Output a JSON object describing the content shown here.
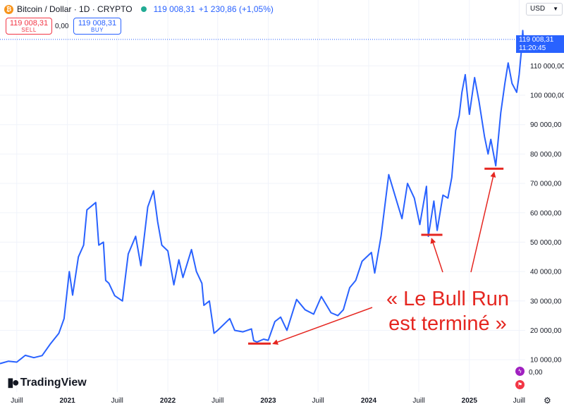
{
  "header": {
    "symbol": "Bitcoin / Dollar · 1D · CRYPTO",
    "last_price": "119 008,31",
    "change": "+1 230,86 (+1,05%)"
  },
  "trade": {
    "sell_price": "119 008,31",
    "sell_label": "SELL",
    "spread": "0,00",
    "buy_price": "119 008,31",
    "buy_label": "BUY"
  },
  "currency": "USD",
  "price_tag": {
    "value": "119 008,31",
    "countdown": "11:20:45"
  },
  "logo": "TradingView",
  "axis_zero": "0,00",
  "annotation": {
    "line1": "« Le Bull Run",
    "line2": "est terminé »"
  },
  "colors": {
    "line": "#2962ff",
    "annotation": "#e52620",
    "sell": "#f23645",
    "buy": "#2962ff"
  },
  "icons": [
    "bitcoin-icon",
    "eye-icon",
    "flash-icon",
    "flag-icon",
    "settings-icon",
    "tradingview-logo-icon"
  ],
  "chart_data": {
    "type": "line",
    "title": "Bitcoin / Dollar · 1D · CRYPTO",
    "xlabel": "",
    "ylabel": "",
    "y_ticks": [
      10000,
      20000,
      30000,
      40000,
      50000,
      60000,
      70000,
      80000,
      90000,
      100000,
      110000
    ],
    "y_tick_labels": [
      "10 000,00",
      "20 000,00",
      "30 000,00",
      "40 000,00",
      "50 000,00",
      "60 000,00",
      "70 000,00",
      "80 000,00",
      "90 000,00",
      "100 000,00",
      "110 000,00"
    ],
    "ylim": [
      -1000,
      130000
    ],
    "x_ticks": [
      "2020-07-01",
      "2021-01-01",
      "2021-07-01",
      "2022-01-01",
      "2022-07-01",
      "2023-01-01",
      "2023-07-01",
      "2024-01-01",
      "2024-07-01",
      "2025-01-01",
      "2025-07-01"
    ],
    "x_tick_labels": [
      "Juill",
      "2021",
      "Juill",
      "2022",
      "Juill",
      "2023",
      "Juill",
      "2024",
      "Juill",
      "2025",
      "Juill"
    ],
    "xlim": [
      "2020-05-01",
      "2025-07-23"
    ],
    "series": [
      {
        "x": [
          "2020-05-01",
          "2020-06-01",
          "2020-07-01",
          "2020-08-01",
          "2020-09-01",
          "2020-10-01",
          "2020-11-01",
          "2020-12-01",
          "2020-12-20",
          "2021-01-08",
          "2021-01-20",
          "2021-02-10",
          "2021-03-01",
          "2021-03-13",
          "2021-04-14",
          "2021-04-25",
          "2021-05-12",
          "2021-05-20",
          "2021-06-01",
          "2021-06-22",
          "2021-07-20",
          "2021-08-10",
          "2021-09-06",
          "2021-09-25",
          "2021-10-20",
          "2021-11-10",
          "2021-11-25",
          "2021-12-10",
          "2022-01-01",
          "2022-01-23",
          "2022-02-10",
          "2022-02-25",
          "2022-03-28",
          "2022-04-15",
          "2022-05-05",
          "2022-05-12",
          "2022-06-01",
          "2022-06-18",
          "2022-07-01",
          "2022-08-14",
          "2022-09-01",
          "2022-10-01",
          "2022-11-01",
          "2022-11-09",
          "2022-11-21",
          "2022-12-15",
          "2023-01-01",
          "2023-01-25",
          "2023-02-15",
          "2023-03-10",
          "2023-04-14",
          "2023-05-15",
          "2023-06-15",
          "2023-07-13",
          "2023-08-17",
          "2023-09-11",
          "2023-10-01",
          "2023-10-24",
          "2023-11-15",
          "2023-12-08",
          "2024-01-11",
          "2024-01-23",
          "2024-02-15",
          "2024-03-14",
          "2024-04-15",
          "2024-05-01",
          "2024-05-21",
          "2024-06-15",
          "2024-07-05",
          "2024-07-29",
          "2024-08-05",
          "2024-08-25",
          "2024-09-06",
          "2024-09-27",
          "2024-10-15",
          "2024-10-29",
          "2024-11-12",
          "2024-11-25",
          "2024-12-05",
          "2024-12-17",
          "2025-01-01",
          "2025-01-20",
          "2025-02-05",
          "2025-02-25",
          "2025-03-10",
          "2025-03-20",
          "2025-04-07",
          "2025-04-25",
          "2025-05-10",
          "2025-05-22",
          "2025-06-05",
          "2025-06-22",
          "2025-07-01",
          "2025-07-10",
          "2025-07-14",
          "2025-07-16"
        ],
        "y": [
          8700,
          9500,
          9200,
          11500,
          10700,
          11400,
          15500,
          19000,
          24000,
          40000,
          32000,
          45000,
          49000,
          61000,
          63500,
          49000,
          50000,
          37000,
          36000,
          31800,
          30000,
          46000,
          52000,
          42000,
          62000,
          67500,
          57000,
          49000,
          47000,
          35500,
          44000,
          38000,
          47500,
          40000,
          36000,
          28500,
          30000,
          19000,
          20000,
          24000,
          20000,
          19500,
          20500,
          16500,
          16000,
          17000,
          16600,
          23000,
          24500,
          20000,
          30500,
          27000,
          25500,
          31500,
          26000,
          25000,
          27000,
          34500,
          37000,
          43500,
          46500,
          39500,
          52000,
          73000,
          63000,
          58000,
          70000,
          65000,
          56000,
          69000,
          52000,
          64000,
          54000,
          66000,
          65000,
          72000,
          88000,
          93000,
          101000,
          107000,
          93500,
          106000,
          98000,
          86000,
          80000,
          85000,
          76000,
          94000,
          104000,
          111000,
          104000,
          101000,
          107000,
          116000,
          122000,
          119008
        ]
      }
    ],
    "current_price": 119008.31,
    "annotation_levels": [
      {
        "date_from": "2022-10-20",
        "date_to": "2023-01-10",
        "value": 15500
      },
      {
        "date_from": "2024-07-10",
        "date_to": "2024-09-25",
        "value": 52500
      },
      {
        "date_from": "2025-02-25",
        "date_to": "2025-05-05",
        "value": 75000
      }
    ]
  }
}
